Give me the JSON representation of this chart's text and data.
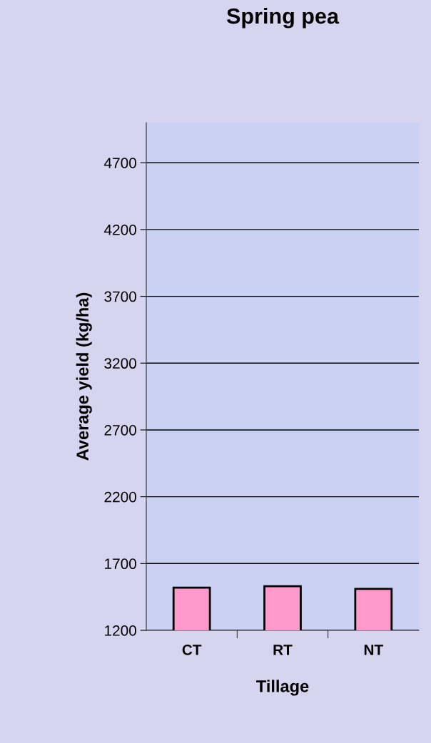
{
  "chart_data": {
    "type": "bar",
    "title": "Spring pea",
    "xlabel": "Tillage",
    "ylabel": "Average yield (kg/ha)",
    "categories": [
      "CT",
      "RT",
      "NT"
    ],
    "series": [
      {
        "color": "#ff99cc",
        "values": [
          1520,
          1530,
          1510
        ]
      }
    ],
    "ylim": [
      1200,
      5000
    ],
    "yticks": [
      1200,
      1700,
      2200,
      2700,
      3200,
      3700,
      4200,
      4700
    ],
    "grid": "y",
    "legend": false
  }
}
